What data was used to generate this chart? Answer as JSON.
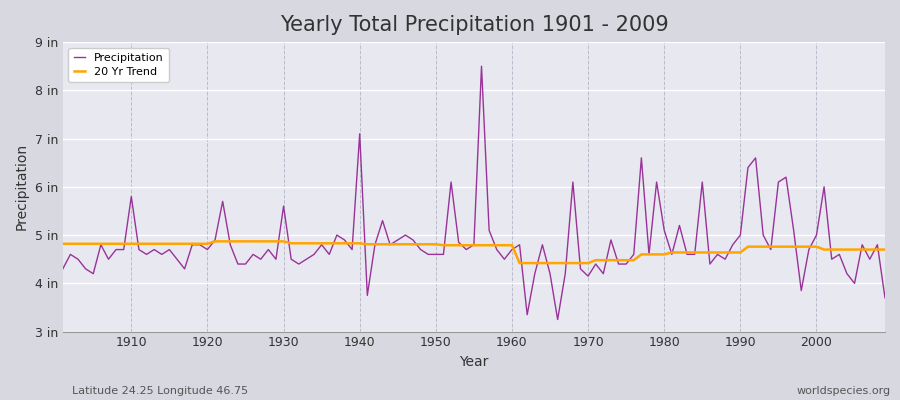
{
  "title": "Yearly Total Precipitation 1901 - 2009",
  "xlabel": "Year",
  "ylabel": "Precipitation",
  "bottom_left": "Latitude 24.25 Longitude 46.75",
  "bottom_right": "worldspecies.org",
  "ylim": [
    3,
    9
  ],
  "yticks": [
    3,
    4,
    5,
    6,
    7,
    8,
    9
  ],
  "ytick_labels": [
    "3 in",
    "4 in",
    "5 in",
    "6 in",
    "7 in",
    "8 in",
    "9 in"
  ],
  "years": [
    1901,
    1902,
    1903,
    1904,
    1905,
    1906,
    1907,
    1908,
    1909,
    1910,
    1911,
    1912,
    1913,
    1914,
    1915,
    1916,
    1917,
    1918,
    1919,
    1920,
    1921,
    1922,
    1923,
    1924,
    1925,
    1926,
    1927,
    1928,
    1929,
    1930,
    1931,
    1932,
    1933,
    1934,
    1935,
    1936,
    1937,
    1938,
    1939,
    1940,
    1941,
    1942,
    1943,
    1944,
    1945,
    1946,
    1947,
    1948,
    1949,
    1950,
    1951,
    1952,
    1953,
    1954,
    1955,
    1956,
    1957,
    1958,
    1959,
    1960,
    1961,
    1962,
    1963,
    1964,
    1965,
    1966,
    1967,
    1968,
    1969,
    1970,
    1971,
    1972,
    1973,
    1974,
    1975,
    1976,
    1977,
    1978,
    1979,
    1980,
    1981,
    1982,
    1983,
    1984,
    1985,
    1986,
    1987,
    1988,
    1989,
    1990,
    1991,
    1992,
    1993,
    1994,
    1995,
    1996,
    1997,
    1998,
    1999,
    2000,
    2001,
    2002,
    2003,
    2004,
    2005,
    2006,
    2007,
    2008,
    2009
  ],
  "precip": [
    4.3,
    4.6,
    4.5,
    4.3,
    4.2,
    4.8,
    4.5,
    4.7,
    4.7,
    5.8,
    4.7,
    4.6,
    4.7,
    4.6,
    4.7,
    4.5,
    4.3,
    4.8,
    4.8,
    4.7,
    4.9,
    5.7,
    4.8,
    4.4,
    4.4,
    4.6,
    4.5,
    4.7,
    4.5,
    5.6,
    4.5,
    4.4,
    4.5,
    4.6,
    4.8,
    4.6,
    5.0,
    4.9,
    4.7,
    7.1,
    3.75,
    4.8,
    5.3,
    4.8,
    4.9,
    5.0,
    4.9,
    4.7,
    4.6,
    4.6,
    4.6,
    6.1,
    4.85,
    4.7,
    4.8,
    8.5,
    5.1,
    4.7,
    4.5,
    4.7,
    4.8,
    3.35,
    4.2,
    4.8,
    4.2,
    3.25,
    4.2,
    6.1,
    4.3,
    4.15,
    4.4,
    4.2,
    4.9,
    4.4,
    4.4,
    4.6,
    6.6,
    4.6,
    6.1,
    5.1,
    4.6,
    5.2,
    4.6,
    4.6,
    6.1,
    4.4,
    4.6,
    4.5,
    4.8,
    5.0,
    6.4,
    6.6,
    5.0,
    4.7,
    6.1,
    6.2,
    5.1,
    3.85,
    4.7,
    5.0,
    6.0,
    4.5,
    4.6,
    4.2,
    4.0,
    4.8,
    4.5,
    4.8,
    3.7
  ],
  "trend": [
    4.82,
    4.82,
    4.82,
    4.82,
    4.82,
    4.82,
    4.82,
    4.82,
    4.82,
    4.82,
    4.82,
    4.82,
    4.82,
    4.82,
    4.82,
    4.82,
    4.82,
    4.82,
    4.82,
    4.82,
    4.87,
    4.87,
    4.87,
    4.87,
    4.87,
    4.87,
    4.87,
    4.87,
    4.87,
    4.87,
    4.83,
    4.83,
    4.83,
    4.83,
    4.83,
    4.83,
    4.83,
    4.83,
    4.83,
    4.83,
    4.81,
    4.81,
    4.81,
    4.81,
    4.81,
    4.81,
    4.81,
    4.81,
    4.81,
    4.81,
    4.79,
    4.79,
    4.79,
    4.79,
    4.79,
    4.79,
    4.79,
    4.79,
    4.79,
    4.79,
    4.42,
    4.42,
    4.42,
    4.42,
    4.42,
    4.42,
    4.42,
    4.42,
    4.42,
    4.42,
    4.48,
    4.48,
    4.48,
    4.48,
    4.48,
    4.48,
    4.6,
    4.6,
    4.6,
    4.6,
    4.64,
    4.64,
    4.64,
    4.64,
    4.64,
    4.64,
    4.64,
    4.64,
    4.64,
    4.64,
    4.76,
    4.76,
    4.76,
    4.76,
    4.76,
    4.76,
    4.76,
    4.76,
    4.76,
    4.76,
    4.7,
    4.7,
    4.7,
    4.7,
    4.7,
    4.7,
    4.7,
    4.7,
    4.7
  ],
  "precip_color": "#993399",
  "trend_color": "#FFA500",
  "fig_bg_color": "#d8d8e0",
  "plot_bg_color": "#e8e8f0",
  "hgrid_color": "#ffffff",
  "vgrid_color": "#bbbbcc",
  "legend_bg_color": "#ffffff",
  "text_color": "#333333",
  "bottom_text_color": "#555555",
  "title_fontsize": 15,
  "label_fontsize": 10,
  "tick_fontsize": 9,
  "annot_fontsize": 8
}
